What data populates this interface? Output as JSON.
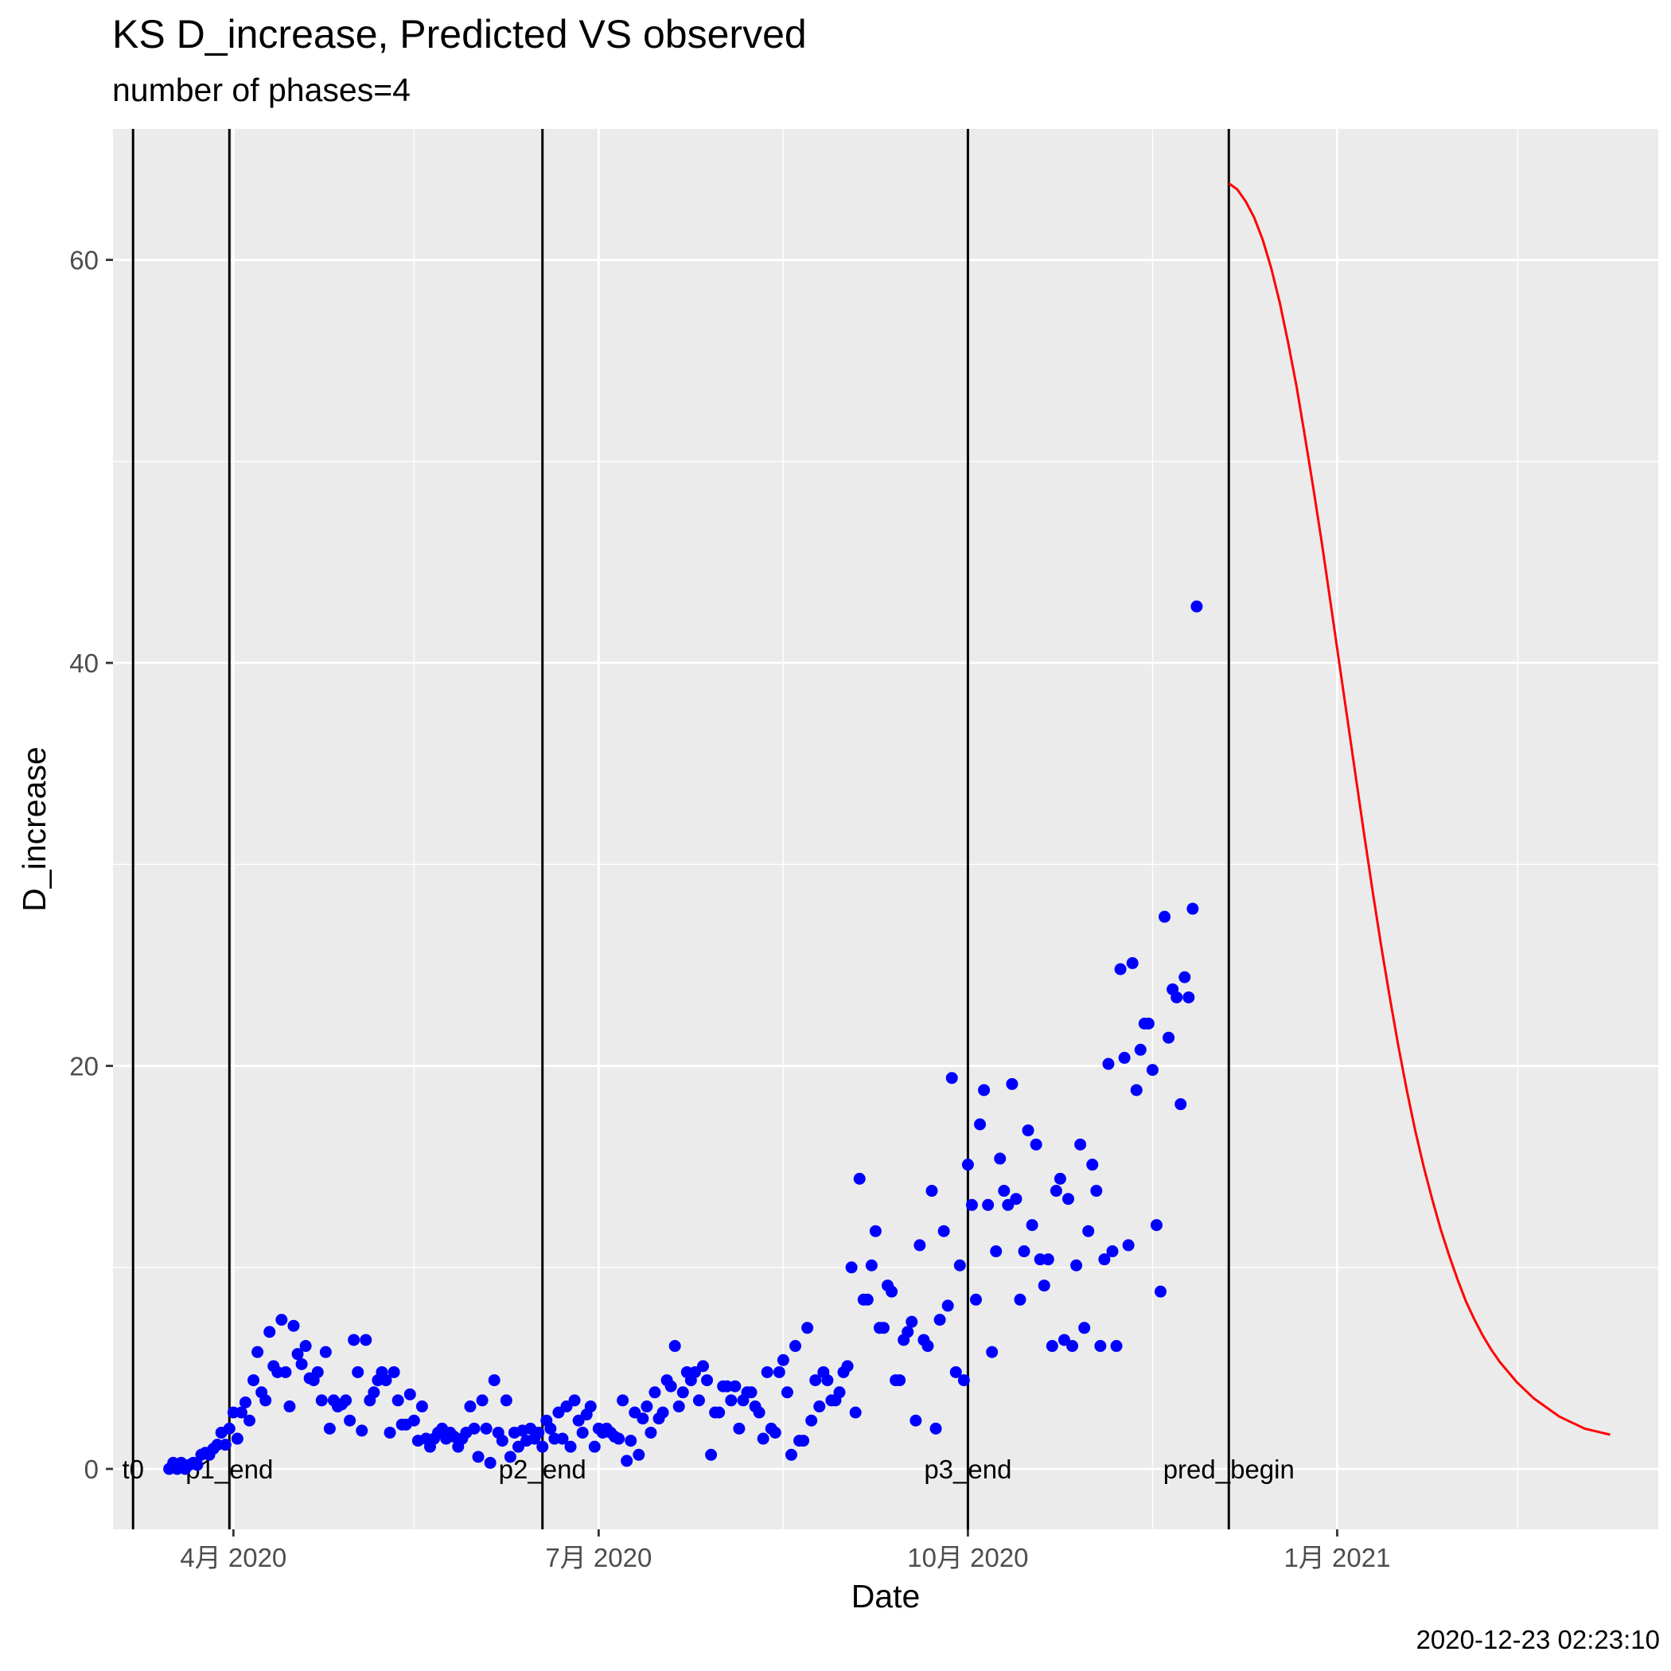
{
  "chart_data": {
    "type": "scatter",
    "title": "KS D_increase, Predicted VS observed",
    "subtitle": "number of phases=4",
    "xlabel": "Date",
    "ylabel": "D_increase",
    "caption": "2020-12-23 02:23:10",
    "xlim": [
      "2020-03-02",
      "2021-03-22"
    ],
    "ylim": [
      -3,
      66.5
    ],
    "x_ticks": [
      {
        "date": "2020-04-01",
        "label": "4月 2020"
      },
      {
        "date": "2020-07-01",
        "label": "7月 2020"
      },
      {
        "date": "2020-10-01",
        "label": "10月 2020"
      },
      {
        "date": "2021-01-01",
        "label": "1月 2021"
      }
    ],
    "x_minor_ticks": [
      "2020-03-01",
      "2020-05-16",
      "2020-08-16",
      "2020-11-16",
      "2021-02-15"
    ],
    "y_ticks": [
      0,
      20,
      40,
      60
    ],
    "y_minor_ticks": [
      10,
      30,
      50
    ],
    "grid": true,
    "colors": {
      "panel_bg": "#EBEBEB",
      "grid": "#FFFFFF",
      "observed": "#0000FF",
      "predicted": "#FF0000",
      "phase_line": "#000000",
      "axis_text": "#4D4D4D",
      "text": "#000000"
    },
    "phase_markers": [
      {
        "date": "2020-03-07",
        "label": "t0"
      },
      {
        "date": "2020-03-31",
        "label": "p1_end"
      },
      {
        "date": "2020-06-17",
        "label": "p2_end"
      },
      {
        "date": "2020-10-01",
        "label": "p3_end"
      },
      {
        "date": "2020-12-05",
        "label": "pred_begin"
      }
    ],
    "series": [
      {
        "type": "scatter",
        "start_date": "2020-03-16",
        "values": [
          0,
          0.3,
          0,
          0.3,
          0,
          0.2,
          0.3,
          0.2,
          0.7,
          0.8,
          0.7,
          1.0,
          1.2,
          1.8,
          1.2,
          2.0,
          2.8,
          1.5,
          2.8,
          3.3,
          2.4,
          4.4,
          5.8,
          3.8,
          3.4,
          6.8,
          5.1,
          4.8,
          7.4,
          4.8,
          3.1,
          7.1,
          5.7,
          5.2,
          6.1,
          4.5,
          4.4,
          4.8,
          3.4,
          5.8,
          2.0,
          3.4,
          3.1,
          3.2,
          3.4,
          2.4,
          6.4,
          4.8,
          1.9,
          6.4,
          3.4,
          3.8,
          4.4,
          4.8,
          4.4,
          1.8,
          4.8,
          3.4,
          2.2,
          2.2,
          3.7,
          2.4,
          1.4,
          3.1,
          1.5,
          1.1,
          1.5,
          1.8,
          2.0,
          1.5,
          1.8,
          1.6,
          1.1,
          1.5,
          1.8,
          3.1,
          2.0,
          0.6,
          3.4,
          2.0,
          0.3,
          4.4,
          1.8,
          1.4,
          3.4,
          0.6,
          1.8,
          1.1,
          1.9,
          1.4,
          2.0,
          1.5,
          1.8,
          1.1,
          2.4,
          2.0,
          1.5,
          2.8,
          1.5,
          3.1,
          1.1,
          3.4,
          2.4,
          1.8,
          2.7,
          3.1,
          1.1,
          2.0,
          1.8,
          2.0,
          1.8,
          1.6,
          1.5,
          3.4,
          0.4,
          1.4,
          2.8,
          0.7,
          2.5,
          3.1,
          1.8,
          3.8,
          2.5,
          2.8,
          4.4,
          4.1,
          6.1,
          3.1,
          3.8,
          4.8,
          4.4,
          4.8,
          3.4,
          5.1,
          4.4,
          0.7,
          2.8,
          2.8,
          4.1,
          4.1,
          3.4,
          4.1,
          2.0,
          3.4,
          3.8,
          3.8,
          3.1,
          2.8,
          1.5,
          4.8,
          2.0,
          1.8,
          4.8,
          5.4,
          3.8,
          0.7,
          6.1,
          1.4,
          1.4,
          7.0,
          2.4,
          4.4,
          3.1,
          4.8,
          4.4,
          3.4,
          3.4,
          3.8,
          4.8,
          5.1,
          10.0,
          2.8,
          14.4,
          8.4,
          8.4,
          10.1,
          11.8,
          7.0,
          7.0,
          9.1,
          8.8,
          4.4,
          4.4,
          6.4,
          6.8,
          7.3,
          2.4,
          11.1,
          6.4,
          6.1,
          13.8,
          2.0,
          7.4,
          11.8,
          8.1,
          19.4,
          4.8,
          10.1,
          4.4,
          15.1,
          13.1,
          8.4,
          17.1,
          18.8,
          13.1,
          5.8,
          10.8,
          15.4,
          13.8,
          13.1,
          19.1,
          13.4,
          8.4,
          10.8,
          16.8,
          12.1,
          16.1,
          10.4,
          9.1,
          10.4,
          6.1,
          13.8,
          14.4,
          6.4,
          13.4,
          6.1,
          10.1,
          16.1,
          7.0,
          11.8,
          15.1,
          13.8,
          6.1,
          10.4,
          20.1,
          10.8,
          6.1,
          24.8,
          20.4,
          11.1,
          25.1,
          18.8,
          20.8,
          22.1,
          22.1,
          19.8,
          12.1,
          8.8,
          27.4,
          21.4,
          23.8,
          23.4,
          18.1,
          24.4,
          23.4,
          27.8,
          42.8
        ]
      },
      {
        "type": "line",
        "start_date": "2020-12-05",
        "end_date": "2021-03-10",
        "values": [
          63.8,
          63.5,
          62.9,
          62.1,
          61.0,
          59.6,
          57.9,
          55.9,
          53.7,
          51.2,
          48.6,
          45.9,
          43.0,
          40.1,
          37.2,
          34.3,
          31.4,
          28.6,
          25.9,
          23.4,
          21.0,
          18.8,
          16.8,
          15.0,
          13.4,
          11.9,
          10.6,
          9.4,
          8.3,
          7.4,
          6.6,
          5.9,
          5.3,
          4.8,
          4.3,
          3.9,
          3.5,
          3.2,
          2.9,
          2.6,
          2.4,
          2.2,
          2.0,
          1.9,
          1.8,
          1.7
        ]
      }
    ]
  }
}
